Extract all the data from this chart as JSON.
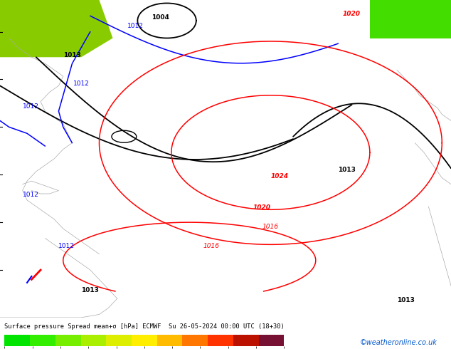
{
  "title_line": "Surface pressure Spread mean+σ [hPa] ECMWF  Su 26-05-2024 00:00 UTC (18+30)",
  "colorbar_values": [
    0,
    2,
    4,
    6,
    8,
    10,
    12,
    14,
    16,
    18,
    20
  ],
  "colorbar_colors": [
    "#00e400",
    "#33ee00",
    "#77ee00",
    "#aaee00",
    "#ddee00",
    "#ffee00",
    "#ffbb00",
    "#ff7700",
    "#ff3300",
    "#bb1100",
    "#771133"
  ],
  "map_bg": "#00ee00",
  "map_bg_dark": "#009900",
  "map_top_left_bg": "#55bb00",
  "credit": "©weatheronline.co.uk",
  "credit_color": "#0055cc",
  "title_color": "#000000",
  "fig_width": 6.34,
  "fig_height": 4.9,
  "dpi": 100,
  "black_contour_lw": 1.3,
  "blue_contour_lw": 1.1,
  "red_contour_lw": 1.1,
  "coast_color": "#aaaaaa",
  "coast_lw": 0.5
}
